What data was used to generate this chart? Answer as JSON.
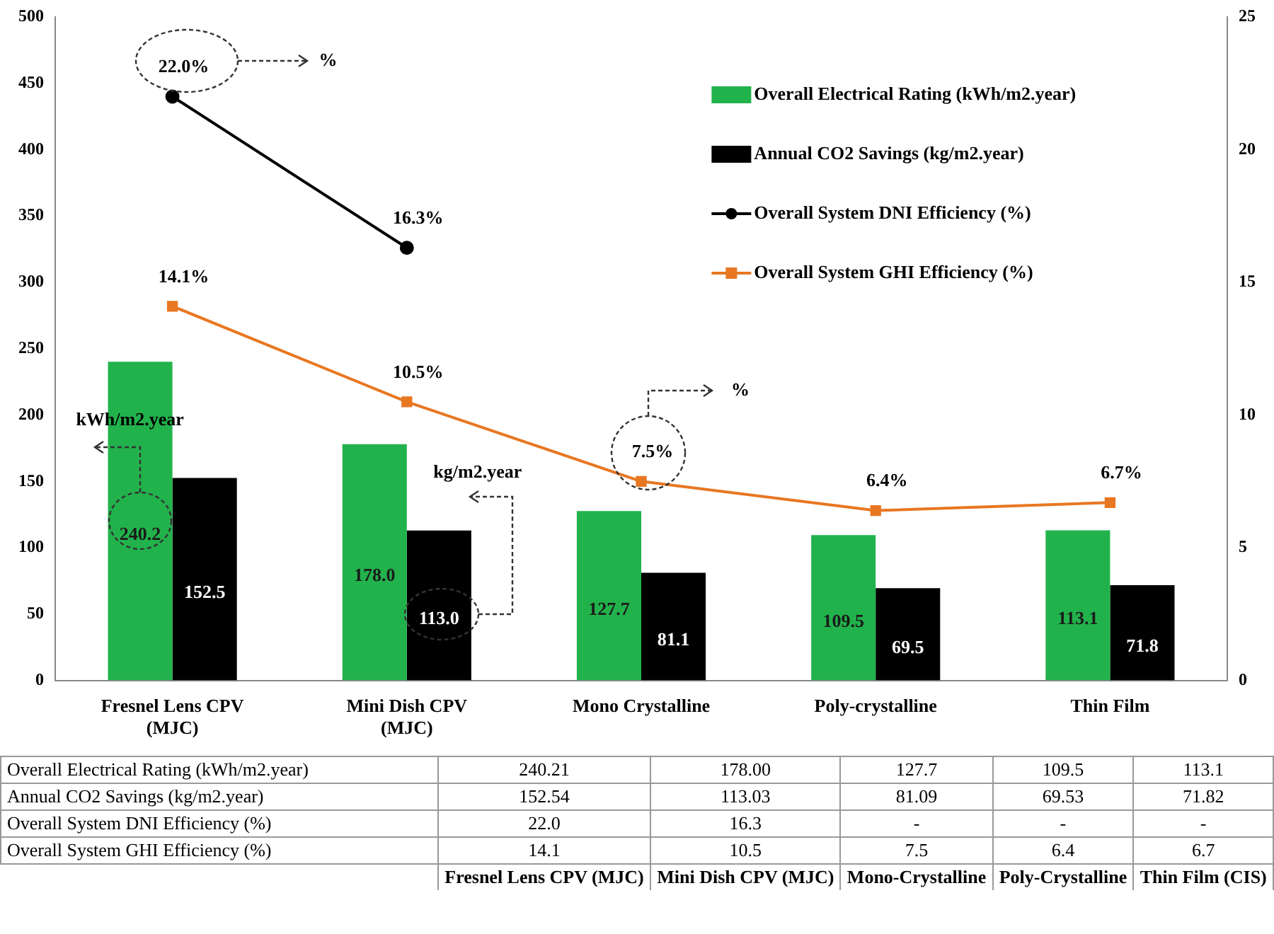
{
  "chart_data": {
    "type": "bar",
    "categories": [
      "Fresnel Lens CPV (MJC)",
      "Mini Dish CPV (MJC)",
      "Mono Crystalline",
      "Poly-crystalline",
      "Thin Film"
    ],
    "series": [
      {
        "name": "Overall Electrical Rating (kWh/m2.year)",
        "color": "#22b24c",
        "values": [
          240.21,
          178.0,
          127.7,
          109.5,
          113.1
        ],
        "value_labels": [
          "240.2",
          "178.0",
          "127.7",
          "109.5",
          "113.1"
        ]
      },
      {
        "name": "Annual CO2 Savings (kg/m2.year)",
        "color": "#000000",
        "values": [
          152.54,
          113.03,
          81.09,
          69.53,
          71.82
        ],
        "value_labels": [
          "152.5",
          "113.0",
          "81.1",
          "69.5",
          "71.8"
        ]
      },
      {
        "name": "Overall System DNI Efficiency (%)",
        "type": "line",
        "axis": "y2",
        "marker": "circle",
        "color": "#000000",
        "values": [
          22.0,
          16.3,
          null,
          null,
          null
        ],
        "value_labels": [
          "22.0%",
          "16.3%",
          null,
          null,
          null
        ]
      },
      {
        "name": "Overall System GHI Efficiency (%)",
        "type": "line",
        "axis": "y2",
        "marker": "square",
        "color": "#e87722",
        "values": [
          14.1,
          10.5,
          7.5,
          6.4,
          6.7
        ],
        "value_labels": [
          "14.1%",
          "10.5%",
          "7.5%",
          "6.4%",
          "6.7%"
        ]
      }
    ],
    "ylim": [
      0,
      500
    ],
    "yticks": [
      0,
      50,
      100,
      150,
      200,
      250,
      300,
      350,
      400,
      450,
      500
    ],
    "y2lim": [
      0,
      25
    ],
    "y2ticks": [
      0,
      5,
      10,
      15,
      20,
      25
    ],
    "grid": false,
    "legend": "top right",
    "annotations": [
      "kWh/m2.year",
      "kg/m2.year",
      "%",
      "%",
      "Overall Electrical Rating (kWh/m2.year)",
      "240.21",
      "178.00",
      "127.7",
      "109.5",
      "113.1",
      "Annual CO2 Savings (kg/m2.year)",
      "152.54",
      "113.03",
      "81.09",
      "69.53",
      "71.82",
      "Overall System DNI Efficiency (%)",
      "22.0",
      "16.3",
      "-",
      "-",
      "-",
      "Overall System GHI Efficiency (%)",
      "14.1",
      "10.5",
      "7.5",
      "6.4",
      "6.7",
      "Fresnel Lens CPV (MJC)",
      "Mini Dish CPV (MJC)",
      "Mono-Crystalline",
      "Poly-Crystalline",
      "Thin Film (CIS)"
    ]
  }
}
